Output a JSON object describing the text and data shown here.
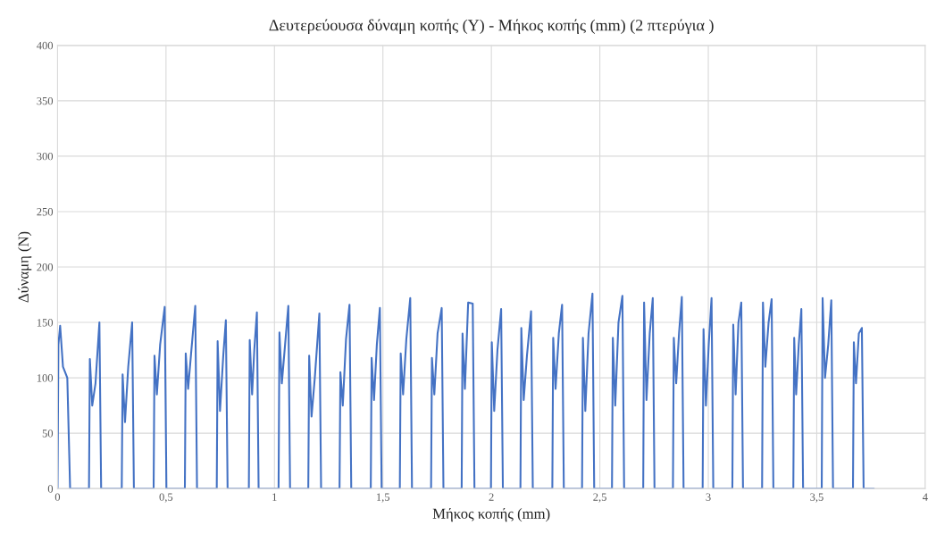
{
  "chart_data": {
    "type": "line",
    "title": "Δευτερεύουσα δύναμη κοπής (Y) - Μήκος κοπής (mm) (2 πτερύγια )",
    "xlabel": "Μήκος κοπής (mm)",
    "ylabel": "Δύναμη (N)",
    "series": [
      {
        "color": "#4472c4",
        "x": [
          0,
          0.004,
          0.012,
          0.025,
          0.045,
          0.058,
          0.145,
          0.149,
          0.16,
          0.175,
          0.193,
          0.201,
          0.296,
          0.3,
          0.311,
          0.326,
          0.344,
          0.352,
          0.443,
          0.447,
          0.458,
          0.473,
          0.494,
          0.502,
          0.587,
          0.591,
          0.602,
          0.617,
          0.635,
          0.643,
          0.734,
          0.738,
          0.749,
          0.764,
          0.776,
          0.784,
          0.882,
          0.886,
          0.897,
          0.907,
          0.919,
          0.927,
          1.019,
          1.023,
          1.034,
          1.049,
          1.064,
          1.072,
          1.156,
          1.16,
          1.171,
          1.186,
          1.207,
          1.215,
          1.3,
          1.304,
          1.315,
          1.33,
          1.346,
          1.354,
          1.444,
          1.448,
          1.459,
          1.472,
          1.486,
          1.494,
          1.578,
          1.582,
          1.593,
          1.608,
          1.626,
          1.634,
          1.722,
          1.726,
          1.737,
          1.752,
          1.771,
          1.779,
          1.863,
          1.867,
          1.878,
          1.893,
          1.914,
          1.922,
          1.998,
          2.002,
          2.013,
          2.028,
          2.045,
          2.053,
          2.134,
          2.138,
          2.149,
          2.164,
          2.183,
          2.191,
          2.281,
          2.285,
          2.296,
          2.311,
          2.326,
          2.334,
          2.418,
          2.422,
          2.433,
          2.448,
          2.466,
          2.474,
          2.556,
          2.56,
          2.571,
          2.586,
          2.604,
          2.612,
          2.7,
          2.704,
          2.715,
          2.73,
          2.744,
          2.752,
          2.837,
          2.841,
          2.852,
          2.865,
          2.878,
          2.886,
          2.974,
          2.978,
          2.989,
          3.002,
          3.015,
          3.023,
          3.111,
          3.115,
          3.126,
          3.139,
          3.152,
          3.16,
          3.248,
          3.252,
          3.263,
          3.278,
          3.292,
          3.3,
          3.392,
          3.396,
          3.405,
          3.417,
          3.429,
          3.437,
          3.523,
          3.527,
          3.538,
          3.553,
          3.567,
          3.575,
          3.667,
          3.671,
          3.681,
          3.694,
          3.708,
          3.716,
          3.763
        ],
        "values": [
          0,
          130,
          147,
          110,
          100,
          0,
          0,
          117,
          75,
          95,
          150,
          0,
          0,
          103,
          60,
          110,
          150,
          0,
          0,
          120,
          85,
          130,
          164,
          0,
          0,
          122,
          90,
          125,
          165,
          0,
          0,
          133,
          70,
          120,
          152,
          0,
          0,
          134,
          85,
          125,
          159,
          0,
          0,
          141,
          95,
          130,
          165,
          0,
          0,
          120,
          65,
          100,
          158,
          0,
          0,
          105,
          75,
          135,
          166,
          0,
          0,
          118,
          80,
          130,
          163,
          0,
          0,
          122,
          85,
          135,
          172,
          0,
          0,
          118,
          85,
          140,
          163,
          0,
          0,
          140,
          90,
          168,
          167,
          0,
          0,
          132,
          70,
          125,
          162,
          0,
          0,
          145,
          80,
          120,
          160,
          0,
          0,
          136,
          90,
          140,
          166,
          0,
          0,
          136,
          70,
          140,
          176,
          0,
          0,
          136,
          75,
          150,
          174,
          0,
          0,
          168,
          80,
          140,
          172,
          0,
          0,
          136,
          95,
          140,
          173,
          0,
          0,
          144,
          75,
          130,
          172,
          0,
          0,
          148,
          85,
          150,
          168,
          0,
          0,
          168,
          110,
          150,
          171,
          0,
          0,
          136,
          85,
          130,
          162,
          0,
          0,
          172,
          100,
          130,
          170,
          0,
          0,
          132,
          95,
          140,
          145,
          0,
          0
        ]
      }
    ],
    "xlim": [
      0,
      4
    ],
    "xticks": [
      0,
      {
        "value": 0.5,
        "label": "0,5"
      },
      1,
      {
        "value": 1.5,
        "label": "1,5"
      },
      2,
      {
        "value": 2.5,
        "label": "2,5"
      },
      3,
      {
        "value": 3.5,
        "label": "3,5"
      },
      4
    ],
    "ylim": [
      0,
      400
    ],
    "yticks": [
      0,
      50,
      100,
      150,
      200,
      250,
      300,
      350,
      400
    ],
    "grid": true,
    "marker": "none",
    "line_style": "solid"
  }
}
